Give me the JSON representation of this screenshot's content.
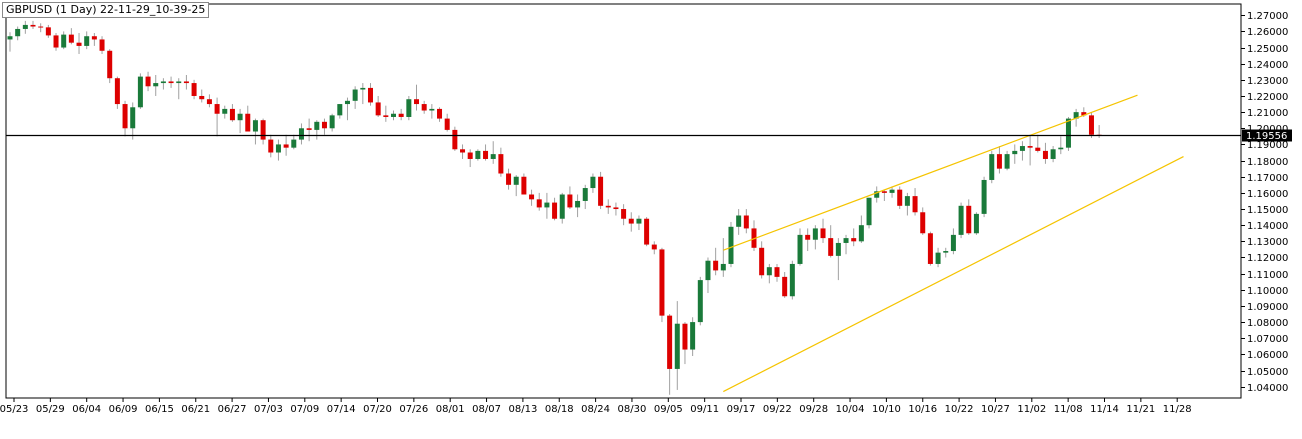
{
  "chart_data": {
    "type": "candlestick",
    "title": "GBPUSD (1 Day) 22-11-29_10-39-25",
    "ylim": [
      1.033,
      1.272
    ],
    "y_ticks": [
      "1.04000",
      "1.05000",
      "1.06000",
      "1.07000",
      "1.08000",
      "1.09000",
      "1.10000",
      "1.11000",
      "1.12000",
      "1.13000",
      "1.14000",
      "1.15000",
      "1.16000",
      "1.17000",
      "1.18000",
      "1.19000",
      "1.20000",
      "1.21000",
      "1.22000",
      "1.23000",
      "1.24000",
      "1.25000",
      "1.26000",
      "1.27000"
    ],
    "x_ticks": [
      "05/23",
      "05/29",
      "06/04",
      "06/09",
      "06/15",
      "06/21",
      "06/27",
      "07/03",
      "07/09",
      "07/14",
      "07/20",
      "07/26",
      "08/01",
      "08/07",
      "08/13",
      "08/18",
      "08/24",
      "08/30",
      "09/05",
      "09/11",
      "09/17",
      "09/22",
      "09/28",
      "10/04",
      "10/10",
      "10/16",
      "10/22",
      "10/27",
      "11/02",
      "11/08",
      "11/14",
      "11/21",
      "11/28"
    ],
    "current_price": "1.19556",
    "price_line": 1.19556,
    "colors": {
      "up": "#1a7a3a",
      "down": "#dd0000",
      "wick": "#a0a0a0",
      "channel": "#f5c400",
      "price_line": "#000000",
      "grid": "#e0e0e0"
    },
    "channel_lines": [
      {
        "from": [
          93,
          1.1245
        ],
        "to": [
          147,
          1.2205
        ]
      },
      {
        "from": [
          93,
          1.037
        ],
        "to": [
          153,
          1.1825
        ]
      }
    ],
    "candles": [
      [
        1.255,
        1.2595,
        1.2475,
        1.257
      ],
      [
        1.257,
        1.263,
        1.2545,
        1.2615
      ],
      [
        1.2615,
        1.2665,
        1.2585,
        1.264
      ],
      [
        1.264,
        1.2665,
        1.2615,
        1.263
      ],
      [
        1.263,
        1.265,
        1.2595,
        1.2625
      ],
      [
        1.2625,
        1.264,
        1.256,
        1.2575
      ],
      [
        1.2575,
        1.259,
        1.248,
        1.25
      ],
      [
        1.25,
        1.26,
        1.249,
        1.258
      ],
      [
        1.258,
        1.262,
        1.252,
        1.253
      ],
      [
        1.253,
        1.259,
        1.246,
        1.251
      ],
      [
        1.251,
        1.26,
        1.249,
        1.257
      ],
      [
        1.257,
        1.259,
        1.251,
        1.255
      ],
      [
        1.255,
        1.257,
        1.246,
        1.248
      ],
      [
        1.248,
        1.249,
        1.228,
        1.231
      ],
      [
        1.231,
        1.232,
        1.212,
        1.215
      ],
      [
        1.215,
        1.217,
        1.195,
        1.2
      ],
      [
        1.2,
        1.216,
        1.193,
        1.213
      ],
      [
        1.213,
        1.234,
        1.212,
        1.232
      ],
      [
        1.232,
        1.235,
        1.223,
        1.226
      ],
      [
        1.226,
        1.233,
        1.22,
        1.228
      ],
      [
        1.228,
        1.231,
        1.224,
        1.229
      ],
      [
        1.229,
        1.232,
        1.225,
        1.228
      ],
      [
        1.228,
        1.231,
        1.218,
        1.229
      ],
      [
        1.229,
        1.233,
        1.224,
        1.228
      ],
      [
        1.228,
        1.23,
        1.218,
        1.22
      ],
      [
        1.22,
        1.224,
        1.216,
        1.218
      ],
      [
        1.218,
        1.221,
        1.213,
        1.215
      ],
      [
        1.215,
        1.219,
        1.195,
        1.209
      ],
      [
        1.209,
        1.214,
        1.206,
        1.212
      ],
      [
        1.212,
        1.215,
        1.204,
        1.205
      ],
      [
        1.205,
        1.212,
        1.197,
        1.209
      ],
      [
        1.209,
        1.214,
        1.198,
        1.198
      ],
      [
        1.198,
        1.206,
        1.19,
        1.205
      ],
      [
        1.205,
        1.206,
        1.19,
        1.193
      ],
      [
        1.193,
        1.196,
        1.182,
        1.185
      ],
      [
        1.185,
        1.193,
        1.18,
        1.19
      ],
      [
        1.19,
        1.196,
        1.183,
        1.188
      ],
      [
        1.188,
        1.196,
        1.187,
        1.193
      ],
      [
        1.193,
        1.203,
        1.19,
        1.2
      ],
      [
        1.2,
        1.206,
        1.192,
        1.199
      ],
      [
        1.199,
        1.205,
        1.193,
        1.204
      ],
      [
        1.204,
        1.206,
        1.196,
        1.2
      ],
      [
        1.2,
        1.209,
        1.198,
        1.208
      ],
      [
        1.208,
        1.215,
        1.206,
        1.215
      ],
      [
        1.215,
        1.219,
        1.205,
        1.217
      ],
      [
        1.217,
        1.226,
        1.212,
        1.224
      ],
      [
        1.224,
        1.228,
        1.215,
        1.225
      ],
      [
        1.225,
        1.228,
        1.214,
        1.216
      ],
      [
        1.216,
        1.22,
        1.207,
        1.208
      ],
      [
        1.208,
        1.214,
        1.204,
        1.207
      ],
      [
        1.207,
        1.211,
        1.205,
        1.209
      ],
      [
        1.209,
        1.212,
        1.205,
        1.207
      ],
      [
        1.207,
        1.22,
        1.205,
        1.218
      ],
      [
        1.218,
        1.227,
        1.211,
        1.215
      ],
      [
        1.215,
        1.217,
        1.209,
        1.211
      ],
      [
        1.211,
        1.215,
        1.206,
        1.212
      ],
      [
        1.212,
        1.213,
        1.204,
        1.206
      ],
      [
        1.206,
        1.209,
        1.198,
        1.199
      ],
      [
        1.199,
        1.201,
        1.186,
        1.187
      ],
      [
        1.187,
        1.19,
        1.181,
        1.185
      ],
      [
        1.185,
        1.187,
        1.176,
        1.181
      ],
      [
        1.181,
        1.187,
        1.18,
        1.186
      ],
      [
        1.186,
        1.19,
        1.18,
        1.181
      ],
      [
        1.181,
        1.192,
        1.178,
        1.184
      ],
      [
        1.184,
        1.188,
        1.17,
        1.172
      ],
      [
        1.172,
        1.175,
        1.162,
        1.165
      ],
      [
        1.165,
        1.171,
        1.158,
        1.17
      ],
      [
        1.17,
        1.172,
        1.159,
        1.159
      ],
      [
        1.159,
        1.162,
        1.152,
        1.156
      ],
      [
        1.156,
        1.16,
        1.149,
        1.151
      ],
      [
        1.151,
        1.16,
        1.144,
        1.154
      ],
      [
        1.154,
        1.157,
        1.143,
        1.144
      ],
      [
        1.144,
        1.16,
        1.141,
        1.159
      ],
      [
        1.159,
        1.164,
        1.15,
        1.151
      ],
      [
        1.151,
        1.159,
        1.145,
        1.155
      ],
      [
        1.155,
        1.165,
        1.15,
        1.163
      ],
      [
        1.163,
        1.172,
        1.16,
        1.17
      ],
      [
        1.17,
        1.173,
        1.15,
        1.152
      ],
      [
        1.152,
        1.156,
        1.147,
        1.151
      ],
      [
        1.151,
        1.154,
        1.146,
        1.15
      ],
      [
        1.15,
        1.153,
        1.14,
        1.144
      ],
      [
        1.144,
        1.148,
        1.136,
        1.141
      ],
      [
        1.141,
        1.146,
        1.137,
        1.144
      ],
      [
        1.144,
        1.145,
        1.127,
        1.128
      ],
      [
        1.128,
        1.13,
        1.122,
        1.125
      ],
      [
        1.125,
        1.126,
        1.08,
        1.084
      ],
      [
        1.084,
        1.085,
        1.035,
        1.051
      ],
      [
        1.051,
        1.093,
        1.038,
        1.079
      ],
      [
        1.079,
        1.08,
        1.054,
        1.063
      ],
      [
        1.063,
        1.083,
        1.059,
        1.08
      ],
      [
        1.08,
        1.108,
        1.078,
        1.106
      ],
      [
        1.106,
        1.12,
        1.098,
        1.118
      ],
      [
        1.118,
        1.126,
        1.109,
        1.112
      ],
      [
        1.112,
        1.132,
        1.108,
        1.116
      ],
      [
        1.116,
        1.142,
        1.114,
        1.139
      ],
      [
        1.139,
        1.15,
        1.134,
        1.146
      ],
      [
        1.146,
        1.15,
        1.135,
        1.138
      ],
      [
        1.138,
        1.143,
        1.124,
        1.126
      ],
      [
        1.126,
        1.13,
        1.107,
        1.109
      ],
      [
        1.109,
        1.116,
        1.104,
        1.114
      ],
      [
        1.114,
        1.116,
        1.105,
        1.108
      ],
      [
        1.108,
        1.111,
        1.095,
        1.096
      ],
      [
        1.096,
        1.118,
        1.094,
        1.116
      ],
      [
        1.116,
        1.138,
        1.115,
        1.134
      ],
      [
        1.134,
        1.138,
        1.124,
        1.131
      ],
      [
        1.131,
        1.14,
        1.125,
        1.138
      ],
      [
        1.138,
        1.144,
        1.129,
        1.132
      ],
      [
        1.132,
        1.14,
        1.12,
        1.121
      ],
      [
        1.121,
        1.132,
        1.106,
        1.129
      ],
      [
        1.129,
        1.134,
        1.122,
        1.132
      ],
      [
        1.132,
        1.138,
        1.127,
        1.13
      ],
      [
        1.13,
        1.146,
        1.129,
        1.14
      ],
      [
        1.14,
        1.157,
        1.138,
        1.157
      ],
      [
        1.157,
        1.164,
        1.154,
        1.161
      ],
      [
        1.161,
        1.162,
        1.155,
        1.16
      ],
      [
        1.16,
        1.164,
        1.157,
        1.162
      ],
      [
        1.162,
        1.164,
        1.15,
        1.152
      ],
      [
        1.152,
        1.16,
        1.146,
        1.158
      ],
      [
        1.158,
        1.163,
        1.146,
        1.148
      ],
      [
        1.148,
        1.151,
        1.134,
        1.135
      ],
      [
        1.135,
        1.136,
        1.115,
        1.116
      ],
      [
        1.116,
        1.126,
        1.114,
        1.123
      ],
      [
        1.123,
        1.126,
        1.12,
        1.124
      ],
      [
        1.124,
        1.138,
        1.122,
        1.134
      ],
      [
        1.134,
        1.154,
        1.132,
        1.152
      ],
      [
        1.152,
        1.156,
        1.134,
        1.135
      ],
      [
        1.135,
        1.148,
        1.134,
        1.147
      ],
      [
        1.147,
        1.17,
        1.145,
        1.168
      ],
      [
        1.168,
        1.186,
        1.166,
        1.184
      ],
      [
        1.184,
        1.189,
        1.172,
        1.175
      ],
      [
        1.175,
        1.186,
        1.174,
        1.184
      ],
      [
        1.184,
        1.19,
        1.178,
        1.186
      ],
      [
        1.186,
        1.192,
        1.18,
        1.189
      ],
      [
        1.189,
        1.196,
        1.177,
        1.188
      ],
      [
        1.188,
        1.196,
        1.185,
        1.186
      ],
      [
        1.186,
        1.191,
        1.178,
        1.181
      ],
      [
        1.181,
        1.189,
        1.179,
        1.187
      ],
      [
        1.187,
        1.195,
        1.184,
        1.188
      ],
      [
        1.188,
        1.207,
        1.186,
        1.206
      ],
      [
        1.206,
        1.212,
        1.201,
        1.21
      ],
      [
        1.21,
        1.213,
        1.207,
        1.208
      ],
      [
        1.208,
        1.21,
        1.194,
        1.196
      ],
      [
        1.196,
        1.202,
        1.194,
        1.1955
      ]
    ]
  }
}
